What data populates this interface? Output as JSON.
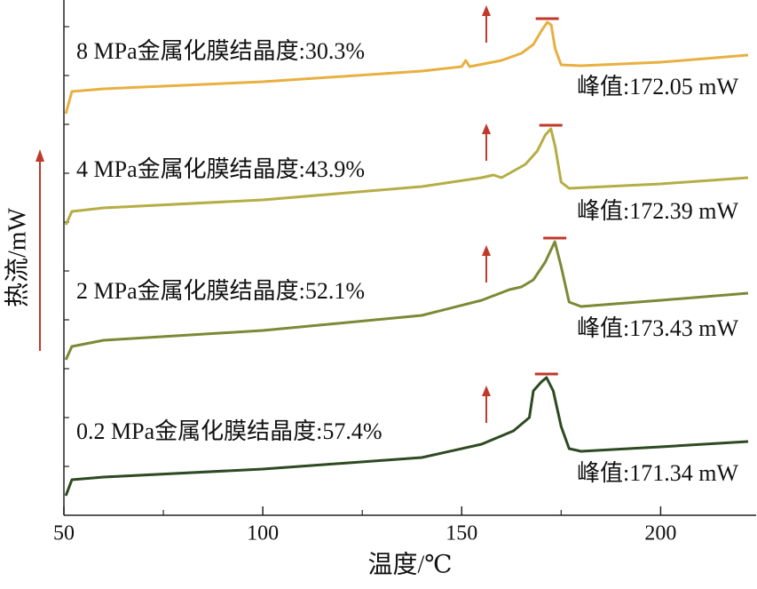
{
  "chart_data": {
    "type": "line",
    "x_label": "温度/℃",
    "y_label": "热流/mW",
    "xlim": [
      50,
      224
    ],
    "xticks": [
      50,
      100,
      150,
      200
    ],
    "xminor_ticks": [
      75,
      125,
      175
    ],
    "ylim": [
      0,
      580
    ],
    "series": [
      {
        "name": "8 MPa",
        "color": "#e8b040",
        "label": "8 MPa金属化膜结晶度:30.3%",
        "peak_label": "峰值:172.05 mW",
        "x": [
          50.5,
          52,
          60,
          100,
          140,
          150,
          151,
          152,
          160,
          165,
          168,
          170,
          171.5,
          172.5,
          173.5,
          175,
          180,
          200,
          222
        ],
        "y": [
          452,
          477,
          480,
          488,
          500,
          505,
          512,
          505,
          512,
          520,
          530,
          545,
          555,
          552,
          525,
          507,
          506,
          510,
          518
        ]
      },
      {
        "name": "4 MPa",
        "color": "#b5ad45",
        "label": "4 MPa金属化膜结晶度:43.9%",
        "peak_label": "峰值:172.39 mW",
        "x": [
          50.5,
          52,
          60,
          100,
          140,
          155,
          158,
          160,
          162,
          166,
          169,
          171,
          172.4,
          173.5,
          175,
          177,
          200,
          222
        ],
        "y": [
          327,
          342,
          346,
          355,
          370,
          380,
          383,
          380,
          385,
          395,
          410,
          428,
          435,
          415,
          375,
          368,
          373,
          380
        ]
      },
      {
        "name": "2 MPa",
        "color": "#7a8a35",
        "label": "2 MPa金属化膜结晶度:52.1%",
        "peak_label": "峰值:173.43 mW",
        "x": [
          50.5,
          52,
          60,
          100,
          140,
          155,
          162,
          165,
          168,
          171,
          173.4,
          175,
          177,
          180,
          200,
          222
        ],
        "y": [
          175,
          190,
          197,
          208,
          225,
          242,
          254,
          257,
          265,
          285,
          308,
          280,
          240,
          235,
          242,
          250
        ]
      },
      {
        "name": "0.2 MPa",
        "color": "#2d4a22",
        "label": "0.2 MPa金属化膜结晶度:57.4%",
        "peak_label": "峰值:171.34 mW",
        "x": [
          50.5,
          52,
          60,
          100,
          140,
          155,
          163,
          167,
          168,
          170,
          171.3,
          173,
          175,
          177,
          180,
          200,
          222
        ],
        "y": [
          22,
          40,
          43,
          52,
          65,
          80,
          95,
          110,
          140,
          150,
          155,
          140,
          100,
          75,
          72,
          77,
          83
        ]
      }
    ]
  }
}
